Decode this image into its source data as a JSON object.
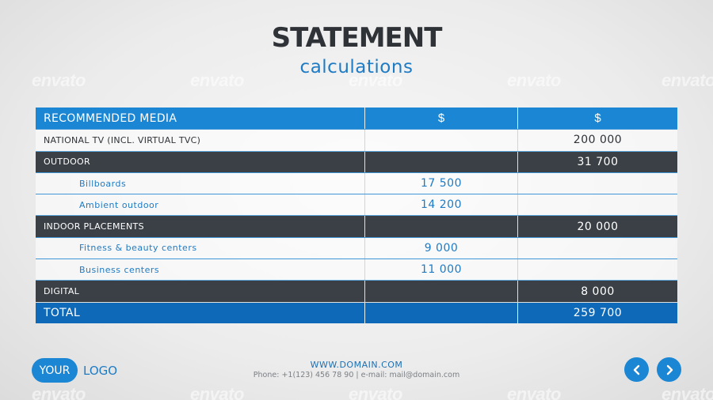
{
  "header": {
    "title": "STATEMENT",
    "subtitle": "calculations"
  },
  "table": {
    "header": {
      "label": "RECOMMENDED MEDIA",
      "col2": "$",
      "col3": "$"
    },
    "rows": [
      {
        "label": "NATIONAL TV (INCL. VIRTUAL TVC)",
        "col2": "",
        "col3": "200 000"
      },
      {
        "label": "OUTDOOR",
        "col2": "",
        "col3": "31 700"
      },
      {
        "label": "Billboards",
        "col2": "17 500",
        "col3": ""
      },
      {
        "label": "Ambient outdoor",
        "col2": "14 200",
        "col3": ""
      },
      {
        "label": "INDOOR PLACEMENTS",
        "col2": "",
        "col3": "20 000"
      },
      {
        "label": "Fitness & beauty centers",
        "col2": "9 000",
        "col3": ""
      },
      {
        "label": "Business centers",
        "col2": "11 000",
        "col3": ""
      },
      {
        "label": "DIGITAL",
        "col2": "",
        "col3": "8 000"
      }
    ],
    "total": {
      "label": "TOTAL",
      "col2": "",
      "col3": "259 700"
    }
  },
  "footer": {
    "logo_badge": "YOUR",
    "logo_text": "LOGO",
    "website": "WWW.DOMAIN.COM",
    "contact": "Phone: +1(123) 456 78 90 | e-mail: mail@domain.com"
  },
  "watermark": {
    "text": "envato"
  },
  "icons": {
    "prev": "chevron-left-icon",
    "next": "chevron-right-icon"
  },
  "colors": {
    "accent": "#1a86d4",
    "dark": "#3b4046",
    "total": "#0e69b8"
  }
}
